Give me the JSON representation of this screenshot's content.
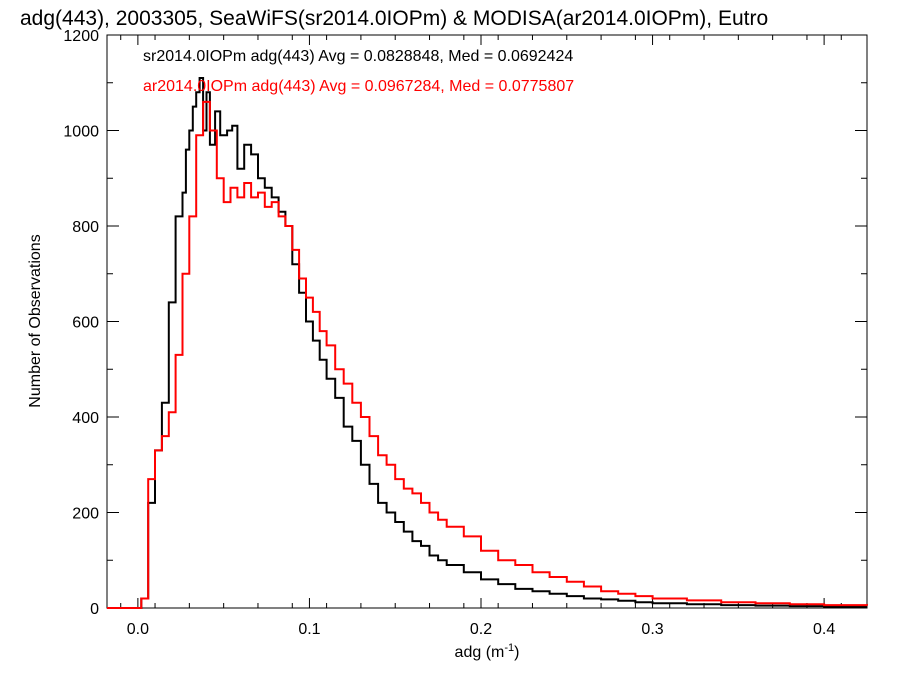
{
  "chart_data": {
    "type": "line",
    "title": "adg(443), 2003305, SeaWiFS(sr2014.0IOPm) & MODISA(ar2014.0IOPm), Eutro",
    "xlabel": "adg (m",
    "xlabel_sup": "-1",
    "xlabel_close": ")",
    "ylabel": "Number of Observations",
    "xlim": [
      -0.018,
      0.425
    ],
    "ylim": [
      0,
      1200
    ],
    "xticks": [
      0.0,
      0.1,
      0.2,
      0.3,
      0.4
    ],
    "xtick_labels": [
      "0.0",
      "0.1",
      "0.2",
      "0.3",
      "0.4"
    ],
    "yticks": [
      0,
      200,
      400,
      600,
      800,
      1000,
      1200
    ],
    "ytick_labels": [
      "0",
      "200",
      "400",
      "600",
      "800",
      "1000",
      "1200"
    ],
    "grid": false,
    "series": [
      {
        "name": "sr2014.0IOPm adg(443) Avg = 0.0828848, Med = 0.0692424",
        "color": "#000000",
        "x": [
          -0.018,
          0.002,
          0.006,
          0.01,
          0.014,
          0.018,
          0.022,
          0.026,
          0.028,
          0.03,
          0.032,
          0.034,
          0.036,
          0.038,
          0.04,
          0.042,
          0.045,
          0.048,
          0.052,
          0.055,
          0.058,
          0.062,
          0.066,
          0.07,
          0.074,
          0.078,
          0.082,
          0.086,
          0.09,
          0.094,
          0.098,
          0.102,
          0.106,
          0.11,
          0.115,
          0.12,
          0.125,
          0.13,
          0.135,
          0.14,
          0.145,
          0.15,
          0.155,
          0.16,
          0.165,
          0.17,
          0.175,
          0.18,
          0.19,
          0.2,
          0.21,
          0.22,
          0.23,
          0.24,
          0.25,
          0.26,
          0.27,
          0.28,
          0.29,
          0.3,
          0.32,
          0.34,
          0.36,
          0.38,
          0.4,
          0.425
        ],
        "y": [
          0,
          20,
          220,
          330,
          430,
          640,
          820,
          870,
          960,
          1000,
          1050,
          1080,
          1110,
          1000,
          1080,
          970,
          1040,
          990,
          1000,
          1010,
          920,
          970,
          950,
          900,
          880,
          860,
          830,
          800,
          720,
          660,
          600,
          560,
          520,
          480,
          440,
          380,
          350,
          300,
          260,
          220,
          200,
          180,
          160,
          140,
          130,
          110,
          100,
          90,
          75,
          60,
          50,
          40,
          35,
          30,
          25,
          20,
          18,
          15,
          12,
          10,
          8,
          6,
          5,
          4,
          3,
          3
        ]
      },
      {
        "name": "ar2014.0IOPm adg(443) Avg = 0.0967284, Med = 0.0775807",
        "color": "#ff0000",
        "x": [
          -0.018,
          0.002,
          0.006,
          0.01,
          0.014,
          0.018,
          0.022,
          0.026,
          0.03,
          0.034,
          0.038,
          0.042,
          0.046,
          0.05,
          0.054,
          0.058,
          0.062,
          0.066,
          0.07,
          0.074,
          0.078,
          0.082,
          0.086,
          0.09,
          0.094,
          0.098,
          0.102,
          0.106,
          0.11,
          0.115,
          0.12,
          0.125,
          0.13,
          0.135,
          0.14,
          0.145,
          0.15,
          0.155,
          0.16,
          0.165,
          0.17,
          0.175,
          0.18,
          0.19,
          0.2,
          0.21,
          0.22,
          0.23,
          0.24,
          0.25,
          0.26,
          0.27,
          0.28,
          0.29,
          0.3,
          0.32,
          0.34,
          0.36,
          0.38,
          0.4,
          0.425
        ],
        "y": [
          0,
          20,
          270,
          330,
          360,
          410,
          530,
          700,
          820,
          990,
          1060,
          1000,
          900,
          850,
          880,
          860,
          890,
          860,
          870,
          840,
          850,
          820,
          800,
          750,
          690,
          650,
          620,
          580,
          550,
          500,
          470,
          430,
          400,
          360,
          320,
          300,
          270,
          250,
          240,
          220,
          200,
          185,
          170,
          150,
          120,
          100,
          90,
          75,
          65,
          55,
          45,
          35,
          30,
          25,
          20,
          16,
          12,
          10,
          8,
          6,
          5
        ]
      }
    ]
  }
}
